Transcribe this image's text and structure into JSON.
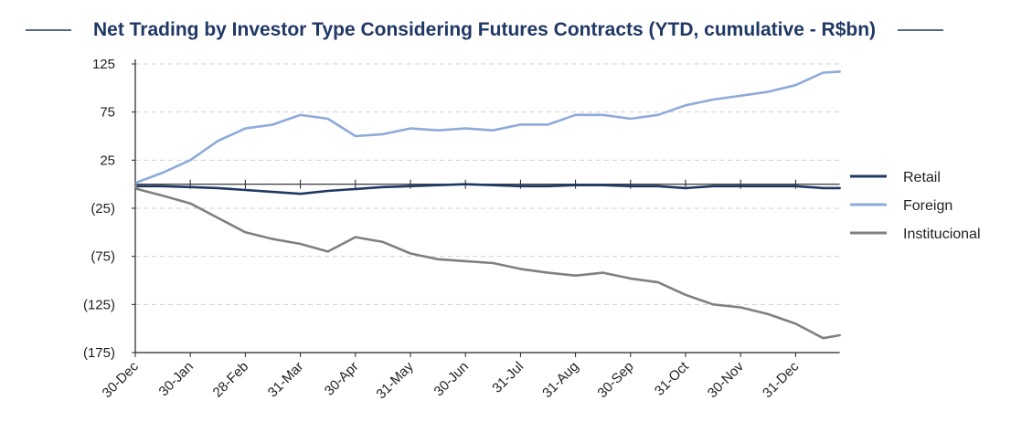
{
  "chart_data": {
    "type": "line",
    "title": "Net Trading by Investor Type Considering Futures Contracts (YTD, cumulative - R$bn)",
    "xlabel": "",
    "ylabel": "",
    "ylim": [
      -175,
      125
    ],
    "yticks": [
      125,
      75,
      25,
      -25,
      -75,
      -125,
      -175
    ],
    "ytick_labels": [
      "125",
      "75",
      "25",
      "(25)",
      "(75)",
      "(125)",
      "(175)"
    ],
    "grid": "horizontal dashed",
    "legend_position": "right",
    "x_tick_labels": [
      "30-Dec",
      "30-Jan",
      "28-Feb",
      "31-Mar",
      "30-Apr",
      "31-May",
      "30-Jun",
      "31-Jul",
      "31-Aug",
      "30-Sep",
      "31-Oct",
      "30-Nov",
      "31-Dec"
    ],
    "x": [
      0,
      0.03,
      0.5,
      1,
      1.5,
      2,
      2.5,
      3,
      3.5,
      4,
      4.5,
      5,
      5.5,
      6,
      6.5,
      7,
      7.5,
      8,
      8.5,
      9,
      9.5,
      10,
      10.5,
      11,
      11.5,
      12,
      12.5,
      12.8
    ],
    "series": [
      {
        "name": "Retail",
        "color": "#1f3864",
        "values": [
          0,
          -2,
          -2,
          -3,
          -4,
          -6,
          -8,
          -10,
          -7,
          -5,
          -3,
          -2,
          -1,
          0,
          -1,
          -2,
          -2,
          -1,
          -1,
          -2,
          -2,
          -4,
          -2,
          -2,
          -2,
          -2,
          -4,
          -4
        ]
      },
      {
        "name": "Foreign",
        "color": "#8eaadb",
        "values": [
          0,
          2,
          12,
          25,
          45,
          58,
          62,
          72,
          68,
          50,
          52,
          58,
          56,
          58,
          56,
          62,
          62,
          72,
          72,
          68,
          72,
          82,
          88,
          92,
          96,
          103,
          116,
          117
        ]
      },
      {
        "name": "Institucional",
        "color": "#808080",
        "values": [
          0,
          -5,
          -12,
          -20,
          -35,
          -50,
          -57,
          -62,
          -70,
          -55,
          -60,
          -72,
          -78,
          -80,
          -82,
          -88,
          -92,
          -95,
          -92,
          -98,
          -102,
          -115,
          -125,
          -128,
          -135,
          -145,
          -160,
          -157
        ]
      }
    ]
  }
}
